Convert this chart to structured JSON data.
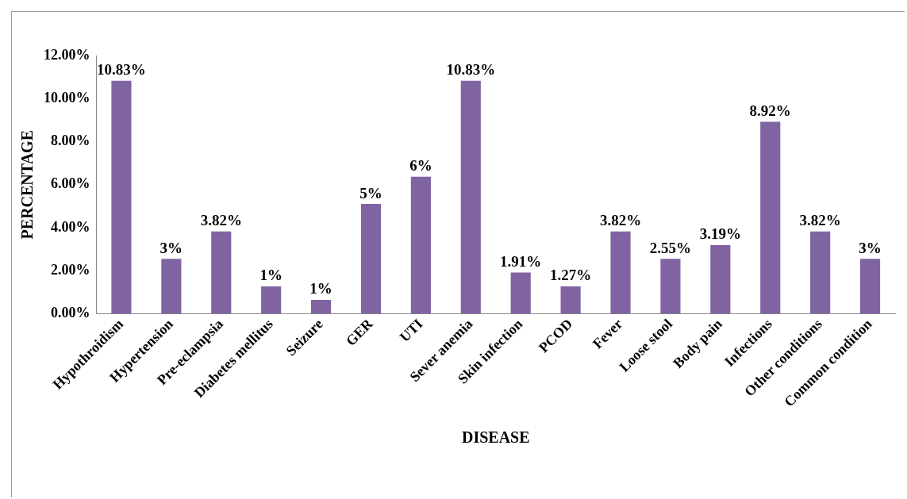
{
  "chart_data": {
    "type": "bar",
    "xlabel": "DISEASE",
    "ylabel": "PERCENTAGE",
    "categories": [
      "Hypothroidism",
      "Hypertension",
      "Pre-eclampsia",
      "Diabetes mellitus",
      "Seizure",
      "GER",
      "UTI",
      "Sever anemia",
      "Skin infection",
      "PCOD",
      "Fever",
      "Loose stool",
      "Body pain",
      "Infections",
      "Other conditions",
      "Common condition"
    ],
    "values": [
      10.83,
      2.55,
      3.82,
      1.27,
      0.64,
      5.1,
      6.37,
      10.83,
      1.91,
      1.27,
      3.82,
      2.55,
      3.19,
      8.92,
      3.82,
      2.55
    ],
    "value_labels": [
      "10.83%",
      "3%",
      "3.82%",
      "1%",
      "1%",
      "5%",
      "6%",
      "10.83%",
      "1.91%",
      "1.27%",
      "3.82%",
      "2.55%",
      "3.19%",
      "8.92%",
      "3.82%",
      "3%"
    ],
    "color": "#8064a2",
    "ylim": [
      0,
      12
    ],
    "yticks": [
      {
        "value": 0,
        "label": "0.00%"
      },
      {
        "value": 2,
        "label": "2.00%"
      },
      {
        "value": 4,
        "label": "4.00%"
      },
      {
        "value": 6,
        "label": "6.00%"
      },
      {
        "value": 8,
        "label": "8.00%"
      },
      {
        "value": 10,
        "label": "10.00%"
      },
      {
        "value": 12,
        "label": "12.00%"
      }
    ],
    "grid": false,
    "legend": false
  }
}
